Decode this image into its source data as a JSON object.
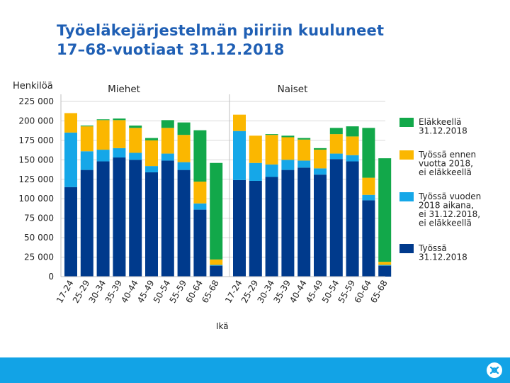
{
  "title": {
    "line1": "Työeläkejärjestelmän piiriin kuuluneet",
    "line2": "17–68-vuotiaat 31.12.2018"
  },
  "colors": {
    "title": "#1f5fb4",
    "footer": "#12a3e6",
    "gridline": "#d9d9d9",
    "series": [
      "#003a8c",
      "#15a7e8",
      "#fbb700",
      "#12a84a"
    ]
  },
  "footer": {
    "logo_icon": "tyoelake-logo-icon"
  },
  "chart_data": {
    "type": "bar",
    "stacked": true,
    "ylabel": "Henkilöä",
    "xlabel": "Ikä",
    "ylim": [
      0,
      225000
    ],
    "yticks": [
      0,
      25000,
      50000,
      75000,
      100000,
      125000,
      150000,
      175000,
      200000,
      225000
    ],
    "ytick_labels": [
      "0",
      "25 000",
      "50 000",
      "75 000",
      "100 000",
      "125 000",
      "150 000",
      "175 000",
      "200 000",
      "225 000"
    ],
    "grid": true,
    "legend_position": "right",
    "categories": [
      "17-24",
      "25-29",
      "30-34",
      "35-39",
      "40-44",
      "45-49",
      "50-54",
      "55-59",
      "60-64",
      "65-68"
    ],
    "series_names": [
      "Työssä 31.12.2018",
      "Työssä vuoden 2018 aikana, ei 31.12.2018, ei eläkkeellä",
      "Työssä ennen vuotta 2018, ei eläkkeellä",
      "Eläkkeellä 31.12.2018"
    ],
    "legend": [
      {
        "series": 3,
        "lines": [
          "Eläkkeellä",
          "31.12.2018"
        ]
      },
      {
        "series": 2,
        "lines": [
          "Työssä ennen",
          "vuotta 2018,",
          "ei eläkkeellä"
        ]
      },
      {
        "series": 1,
        "lines": [
          "Työssä vuoden",
          "2018 aikana,",
          "ei 31.12.2018,",
          "ei eläkkeellä"
        ]
      },
      {
        "series": 0,
        "lines": [
          "Työssä",
          "31.12.2018"
        ]
      }
    ],
    "panels": [
      {
        "title": "Miehet",
        "series": [
          {
            "name": "Työssä 31.12.2018",
            "values": [
              115000,
              137000,
              148000,
              153000,
              150000,
              134000,
              149000,
              137000,
              86000,
              14000
            ]
          },
          {
            "name": "Työssä vuoden 2018 aikana, ei 31.12.2018, ei eläkkeellä",
            "values": [
              70000,
              24000,
              15000,
              12000,
              9000,
              8000,
              9000,
              10000,
              8000,
              1000
            ]
          },
          {
            "name": "Työssä ennen vuotta 2018, ei eläkkeellä",
            "values": [
              25000,
              32000,
              38000,
              36000,
              32000,
              33000,
              33000,
              35000,
              28000,
              7000
            ]
          },
          {
            "name": "Eläkkeellä 31.12.2018",
            "values": [
              0,
              1000,
              1000,
              2000,
              3000,
              3000,
              10000,
              16000,
              66000,
              124000
            ]
          }
        ]
      },
      {
        "title": "Naiset",
        "series": [
          {
            "name": "Työssä 31.12.2018",
            "values": [
              124000,
              123000,
              128000,
              137000,
              140000,
              131000,
              151000,
              148000,
              98000,
              14000
            ]
          },
          {
            "name": "Työssä vuoden 2018 aikana, ei 31.12.2018, ei eläkkeellä",
            "values": [
              63000,
              23000,
              16000,
              13000,
              9000,
              8000,
              7000,
              8000,
              7000,
              1000
            ]
          },
          {
            "name": "Työssä ennen vuotta 2018, ei eläkkeellä",
            "values": [
              21000,
              35000,
              38000,
              29000,
              27000,
              24000,
              25000,
              24000,
              22000,
              4000
            ]
          },
          {
            "name": "Eläkkeellä 31.12.2018",
            "values": [
              0,
              0,
              1000,
              2000,
              2000,
              2000,
              8000,
              13000,
              64000,
              133000
            ]
          }
        ]
      }
    ]
  }
}
